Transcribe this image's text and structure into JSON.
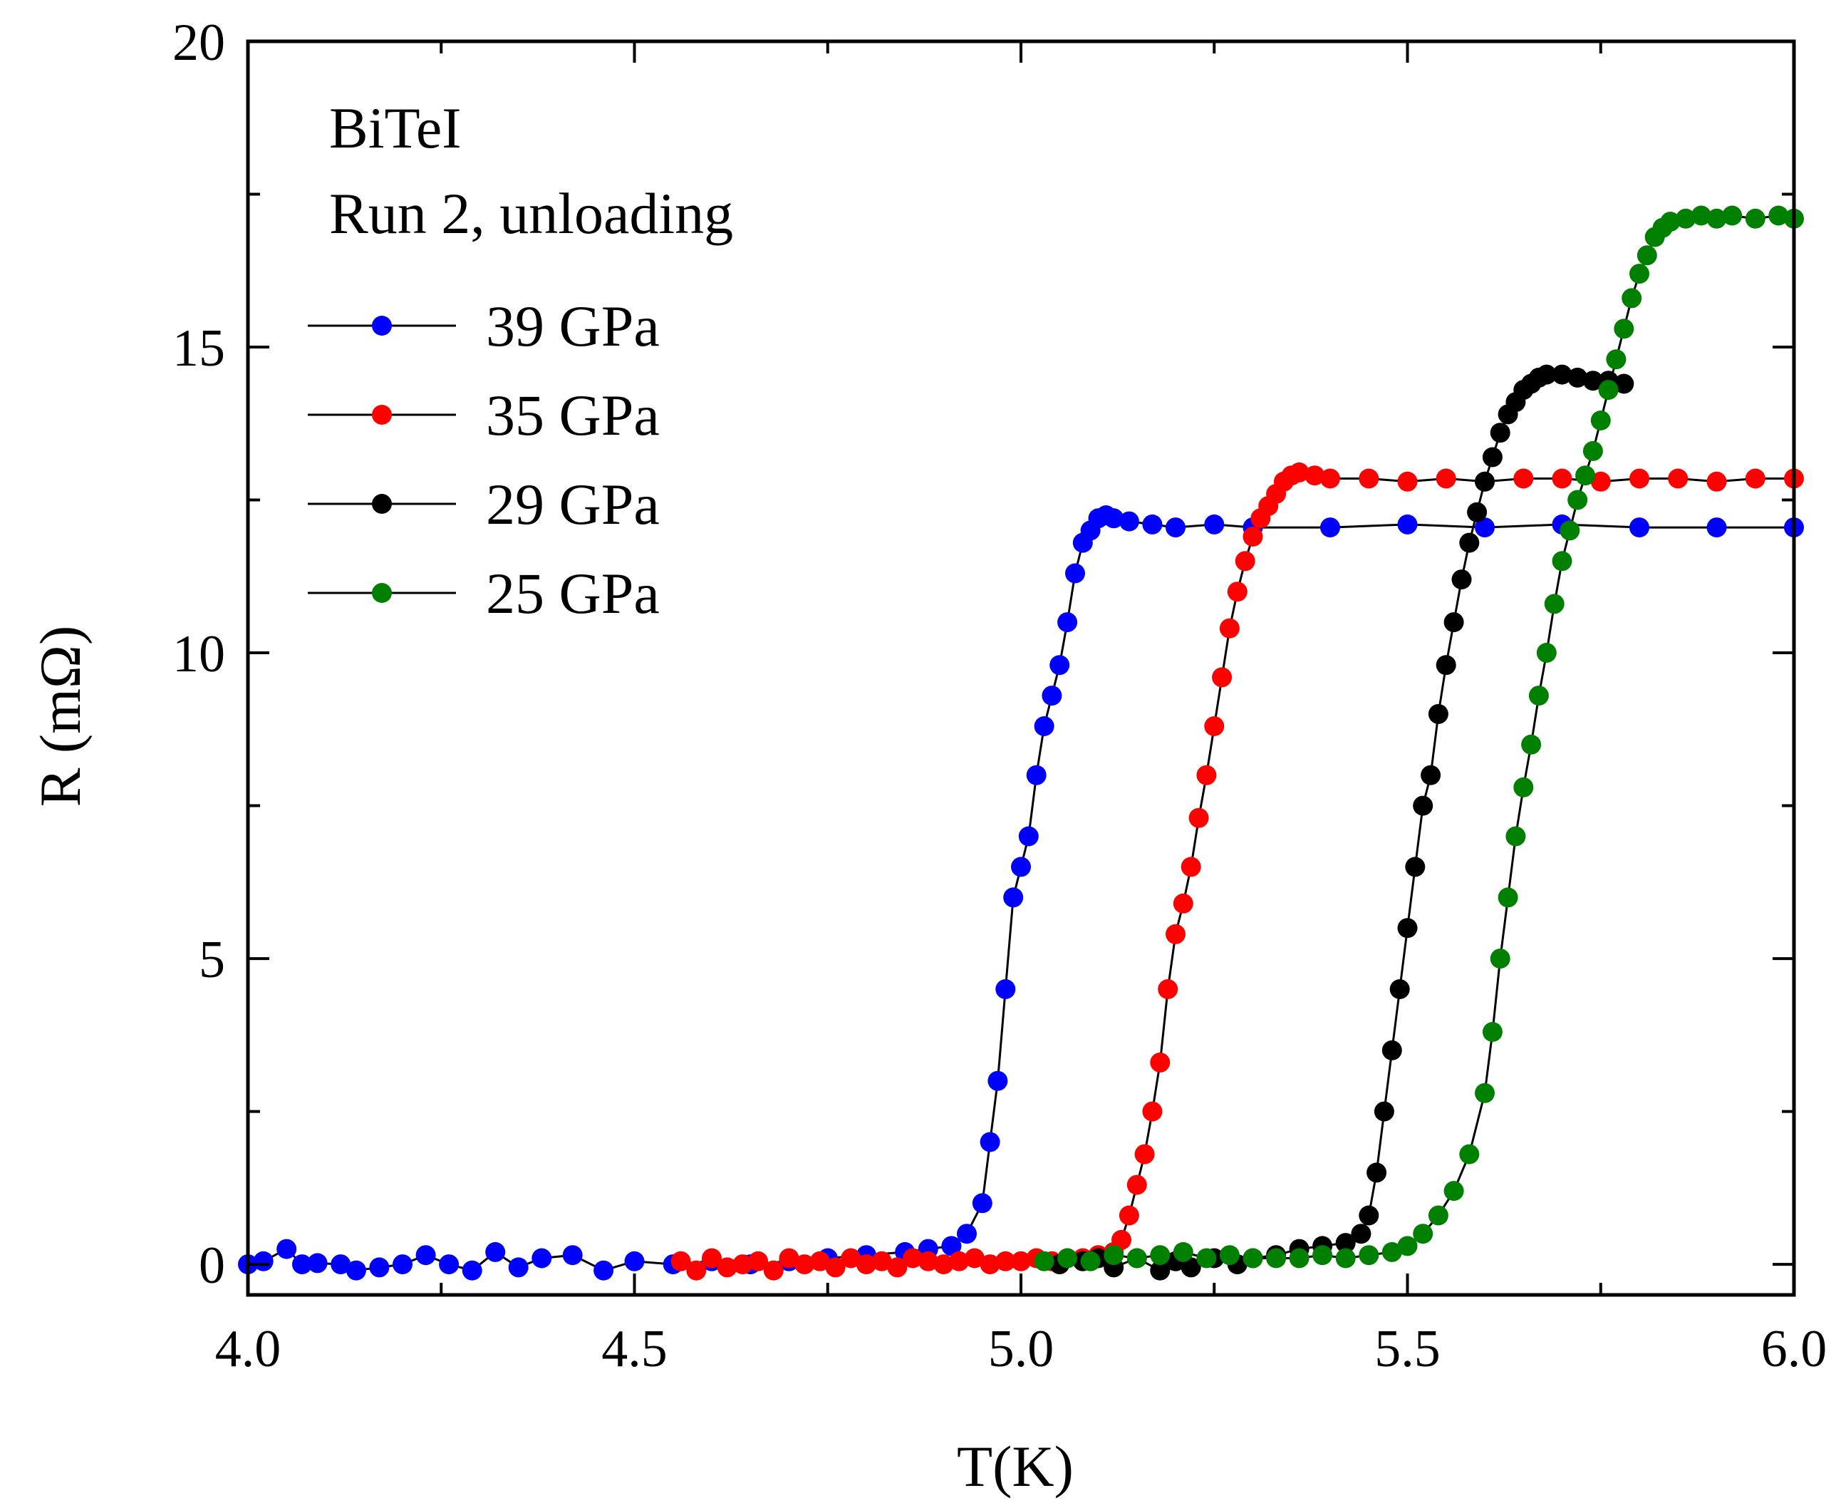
{
  "chart_data": {
    "type": "scatter",
    "title": "",
    "xlabel": "T(K)",
    "ylabel": "R (mΩ)",
    "xlim": [
      4.0,
      6.0
    ],
    "ylim": [
      -0.5,
      20
    ],
    "xticks": [
      4.0,
      4.5,
      5.0,
      5.5,
      6.0
    ],
    "xtick_labels": [
      "4.0",
      "4.5",
      "5.0",
      "5.5",
      "6.0"
    ],
    "yticks": [
      0,
      5,
      10,
      15,
      20
    ],
    "ytick_labels": [
      "0",
      "5",
      "10",
      "15",
      "20"
    ],
    "annotations": [
      "BiTeI",
      "Run 2, unloading"
    ],
    "legend_position": "top-left",
    "series": [
      {
        "name": "39 GPa",
        "color": "#0000ff",
        "x": [
          4.0,
          4.02,
          4.05,
          4.07,
          4.09,
          4.12,
          4.14,
          4.17,
          4.2,
          4.23,
          4.26,
          4.29,
          4.32,
          4.35,
          4.38,
          4.42,
          4.46,
          4.5,
          4.55,
          4.6,
          4.65,
          4.7,
          4.75,
          4.8,
          4.85,
          4.88,
          4.91,
          4.93,
          4.95,
          4.96,
          4.97,
          4.98,
          4.99,
          5.0,
          5.01,
          5.02,
          5.03,
          5.04,
          5.05,
          5.06,
          5.07,
          5.08,
          5.09,
          5.1,
          5.11,
          5.12,
          5.14,
          5.17,
          5.2,
          5.25,
          5.3,
          5.4,
          5.5,
          5.6,
          5.7,
          5.8,
          5.9,
          6.0
        ],
        "y": [
          0.0,
          0.05,
          0.25,
          0.0,
          0.02,
          0.0,
          -0.1,
          -0.05,
          0.0,
          0.15,
          0.0,
          -0.1,
          0.2,
          -0.05,
          0.1,
          0.15,
          -0.1,
          0.05,
          0.0,
          0.05,
          0.0,
          0.05,
          0.1,
          0.15,
          0.2,
          0.25,
          0.3,
          0.5,
          1.0,
          2.0,
          3.0,
          4.5,
          6.0,
          6.5,
          7.0,
          8.0,
          8.8,
          9.3,
          9.8,
          10.5,
          11.3,
          11.8,
          12.0,
          12.2,
          12.25,
          12.2,
          12.15,
          12.1,
          12.05,
          12.1,
          12.05,
          12.05,
          12.1,
          12.05,
          12.1,
          12.05,
          12.05,
          12.05
        ]
      },
      {
        "name": "35 GPa",
        "color": "#ff0000",
        "x": [
          4.56,
          4.58,
          4.6,
          4.62,
          4.64,
          4.66,
          4.68,
          4.7,
          4.72,
          4.74,
          4.76,
          4.78,
          4.8,
          4.82,
          4.84,
          4.86,
          4.88,
          4.9,
          4.92,
          4.94,
          4.96,
          4.98,
          5.0,
          5.02,
          5.04,
          5.06,
          5.08,
          5.1,
          5.12,
          5.13,
          5.14,
          5.15,
          5.16,
          5.17,
          5.18,
          5.19,
          5.2,
          5.21,
          5.22,
          5.23,
          5.24,
          5.25,
          5.26,
          5.27,
          5.28,
          5.29,
          5.3,
          5.31,
          5.32,
          5.33,
          5.34,
          5.35,
          5.36,
          5.38,
          5.4,
          5.45,
          5.5,
          5.55,
          5.6,
          5.65,
          5.7,
          5.75,
          5.8,
          5.85,
          5.9,
          5.95,
          6.0
        ],
        "y": [
          0.05,
          -0.1,
          0.1,
          -0.05,
          0.0,
          0.05,
          -0.1,
          0.1,
          0.0,
          0.05,
          -0.05,
          0.1,
          0.0,
          0.05,
          -0.05,
          0.1,
          0.05,
          0.0,
          0.05,
          0.1,
          0.0,
          0.05,
          0.05,
          0.1,
          0.05,
          0.1,
          0.1,
          0.15,
          0.2,
          0.4,
          0.8,
          1.3,
          1.8,
          2.5,
          3.3,
          4.5,
          5.4,
          5.9,
          6.5,
          7.3,
          8.0,
          8.8,
          9.6,
          10.4,
          11.0,
          11.5,
          11.9,
          12.2,
          12.4,
          12.6,
          12.8,
          12.9,
          12.95,
          12.9,
          12.85,
          12.85,
          12.8,
          12.85,
          12.8,
          12.85,
          12.85,
          12.8,
          12.85,
          12.85,
          12.8,
          12.85,
          12.85
        ]
      },
      {
        "name": "29 GPa",
        "color": "#000000",
        "x": [
          5.05,
          5.08,
          5.1,
          5.12,
          5.15,
          5.18,
          5.2,
          5.22,
          5.25,
          5.28,
          5.3,
          5.33,
          5.36,
          5.39,
          5.42,
          5.44,
          5.45,
          5.46,
          5.47,
          5.48,
          5.49,
          5.5,
          5.51,
          5.52,
          5.53,
          5.54,
          5.55,
          5.56,
          5.57,
          5.58,
          5.59,
          5.6,
          5.61,
          5.62,
          5.63,
          5.64,
          5.65,
          5.66,
          5.67,
          5.68,
          5.7,
          5.72,
          5.74,
          5.76,
          5.78
        ],
        "y": [
          0.0,
          0.05,
          0.1,
          -0.05,
          0.1,
          -0.1,
          0.05,
          -0.05,
          0.1,
          0.0,
          0.1,
          0.15,
          0.25,
          0.3,
          0.35,
          0.5,
          0.8,
          1.5,
          2.5,
          3.5,
          4.5,
          5.5,
          6.5,
          7.5,
          8.0,
          9.0,
          9.8,
          10.5,
          11.2,
          11.8,
          12.3,
          12.8,
          13.2,
          13.6,
          13.9,
          14.1,
          14.3,
          14.4,
          14.5,
          14.55,
          14.55,
          14.5,
          14.45,
          14.45,
          14.4
        ]
      },
      {
        "name": "25 GPa",
        "color": "#008000",
        "x": [
          5.03,
          5.06,
          5.09,
          5.12,
          5.15,
          5.18,
          5.21,
          5.24,
          5.27,
          5.3,
          5.33,
          5.36,
          5.39,
          5.42,
          5.45,
          5.48,
          5.5,
          5.52,
          5.54,
          5.56,
          5.58,
          5.6,
          5.61,
          5.62,
          5.63,
          5.64,
          5.65,
          5.66,
          5.67,
          5.68,
          5.69,
          5.7,
          5.71,
          5.72,
          5.73,
          5.74,
          5.75,
          5.76,
          5.77,
          5.78,
          5.79,
          5.8,
          5.81,
          5.82,
          5.83,
          5.84,
          5.86,
          5.88,
          5.9,
          5.92,
          5.95,
          5.98,
          6.0
        ],
        "y": [
          0.05,
          0.1,
          0.05,
          0.15,
          0.1,
          0.15,
          0.2,
          0.1,
          0.15,
          0.1,
          0.1,
          0.1,
          0.15,
          0.1,
          0.15,
          0.2,
          0.3,
          0.5,
          0.8,
          1.2,
          1.8,
          2.8,
          3.8,
          5.0,
          6.0,
          7.0,
          7.8,
          8.5,
          9.3,
          10.0,
          10.8,
          11.5,
          12.0,
          12.5,
          12.9,
          13.3,
          13.8,
          14.3,
          14.8,
          15.3,
          15.8,
          16.2,
          16.5,
          16.8,
          16.95,
          17.05,
          17.1,
          17.15,
          17.1,
          17.15,
          17.1,
          17.15,
          17.1
        ]
      }
    ]
  }
}
